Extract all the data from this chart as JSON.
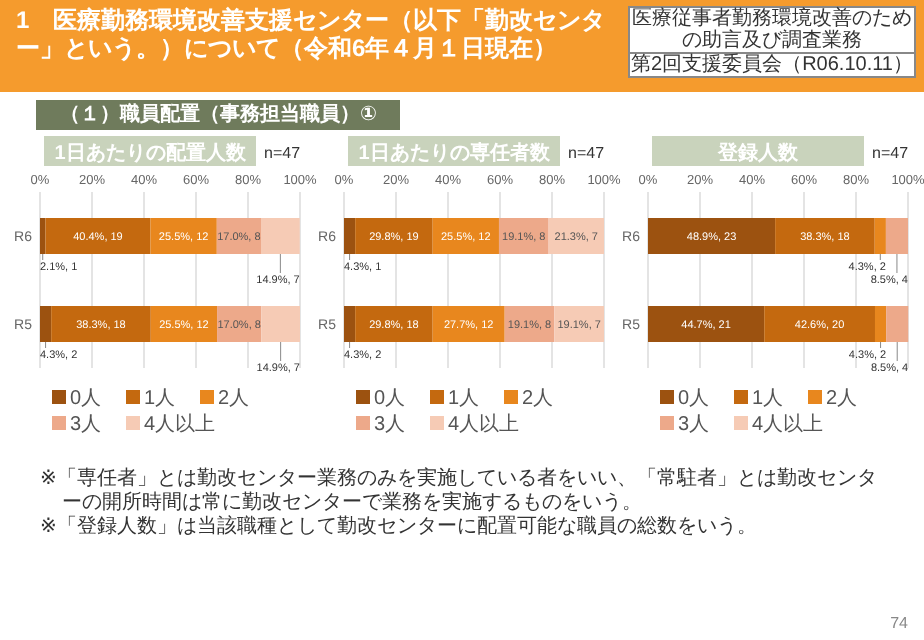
{
  "chart_data": [
    {
      "type": "other",
      "title": "1　医療勤務環境改善支援センター（以下「勤改センター」という。）について（令和6年４月１日現在）",
      "subtitle": "（１）職員配置（事務担当職員）①",
      "annotations": [
        "医療従事者勤務環境改善のための助言及び調査業務",
        "第2回支援委員会（R06.10.11）",
        "※「専任者」とは勤改センター業務のみを実施している者をいい、「常駐者」とは勤改センターの開所時間は常に勤改センターで業務を実施するものをいう。",
        "※「登録人数」は当該職種として勤改センターに配置可能な職員の総数をいう。",
        "74"
      ]
    },
    {
      "type": "bar",
      "orientation": "horizontal",
      "stacked": true,
      "title": "1日あたりの配置人数",
      "annotations": [
        "n=47"
      ],
      "categories": [
        "R6",
        "R5"
      ],
      "xlim": [
        0,
        100
      ],
      "xticks": [
        {
          "value": 0,
          "label": "0%"
        },
        {
          "value": 20,
          "label": "20%"
        },
        {
          "value": 40,
          "label": "40%"
        },
        {
          "value": 60,
          "label": "60%"
        },
        {
          "value": 80,
          "label": "80%"
        },
        {
          "value": 100,
          "label": "100%"
        }
      ],
      "grid": "x",
      "legend": "bottom",
      "series": [
        {
          "name": "0人",
          "color": "#9c5210",
          "values": [
            2.1,
            4.3
          ],
          "value_labels": [
            "2.1%, 1",
            "4.3%, 2"
          ]
        },
        {
          "name": "1人",
          "color": "#c4690f",
          "values": [
            40.4,
            38.3
          ],
          "value_labels": [
            "40.4%, 19",
            "38.3%, 18"
          ]
        },
        {
          "name": "2人",
          "color": "#e8871e",
          "values": [
            25.5,
            25.5
          ],
          "value_labels": [
            "25.5%, 12",
            "25.5%, 12"
          ]
        },
        {
          "name": "3人",
          "color": "#eda98a",
          "values": [
            17.0,
            17.0
          ],
          "value_labels": [
            "17.0%, 8",
            "17.0%, 8"
          ]
        },
        {
          "name": "4人以上",
          "color": "#f6cbb5",
          "values": [
            14.9,
            14.9
          ],
          "value_labels": [
            "14.9%, 7",
            "14.9%, 7"
          ]
        }
      ]
    },
    {
      "type": "bar",
      "orientation": "horizontal",
      "stacked": true,
      "title": "1日あたりの専任者数",
      "annotations": [
        "n=47"
      ],
      "categories": [
        "R6",
        "R5"
      ],
      "xlim": [
        0,
        100
      ],
      "xticks": [
        {
          "value": 0,
          "label": "0%"
        },
        {
          "value": 20,
          "label": "20%"
        },
        {
          "value": 40,
          "label": "40%"
        },
        {
          "value": 60,
          "label": "60%"
        },
        {
          "value": 80,
          "label": "80%"
        },
        {
          "value": 100,
          "label": "100%"
        }
      ],
      "grid": "x",
      "legend": "bottom",
      "series": [
        {
          "name": "0人",
          "color": "#9c5210",
          "values": [
            4.3,
            4.3
          ],
          "value_labels": [
            "4.3%, 1",
            "4.3%, 2"
          ]
        },
        {
          "name": "1人",
          "color": "#c4690f",
          "values": [
            29.8,
            29.8
          ],
          "value_labels": [
            "29.8%, 19",
            "29.8%, 18"
          ]
        },
        {
          "name": "2人",
          "color": "#e8871e",
          "values": [
            25.5,
            27.7
          ],
          "value_labels": [
            "25.5%, 12",
            "27.7%, 12"
          ]
        },
        {
          "name": "3人",
          "color": "#eda98a",
          "values": [
            19.1,
            19.1
          ],
          "value_labels": [
            "19.1%, 8",
            "19.1%, 8"
          ]
        },
        {
          "name": "4人以上",
          "color": "#f6cbb5",
          "values": [
            21.3,
            19.1
          ],
          "value_labels": [
            "21.3%, 7",
            "19.1%, 7"
          ]
        }
      ]
    },
    {
      "type": "bar",
      "orientation": "horizontal",
      "stacked": true,
      "title": "登録人数",
      "annotations": [
        "n=47"
      ],
      "categories": [
        "R6",
        "R5"
      ],
      "xlim": [
        0,
        100
      ],
      "xticks": [
        {
          "value": 0,
          "label": "0%"
        },
        {
          "value": 20,
          "label": "20%"
        },
        {
          "value": 40,
          "label": "40%"
        },
        {
          "value": 60,
          "label": "60%"
        },
        {
          "value": 80,
          "label": "80%"
        },
        {
          "value": 100,
          "label": "100%"
        }
      ],
      "grid": "x",
      "legend": "bottom",
      "series": [
        {
          "name": "0人",
          "color": "#9c5210",
          "values": [
            48.9,
            44.7
          ],
          "value_labels": [
            "48.9%, 23",
            "44.7%, 21"
          ]
        },
        {
          "name": "1人",
          "color": "#c4690f",
          "values": [
            38.3,
            42.6
          ],
          "value_labels": [
            "38.3%, 18",
            "42.6%, 20"
          ]
        },
        {
          "name": "2人",
          "color": "#e8871e",
          "values": [
            4.3,
            4.3
          ],
          "value_labels": [
            "4.3%, 2",
            "4.3%, 2"
          ]
        },
        {
          "name": "3人",
          "color": "#eda98a",
          "values": [
            8.5,
            8.5
          ],
          "value_labels": [
            "8.5%, 4",
            "8.5%, 4"
          ]
        },
        {
          "name": "4人以上",
          "color": "#f6cbb5",
          "values": [
            null,
            null
          ],
          "value_labels": [
            null,
            null
          ]
        }
      ]
    }
  ]
}
